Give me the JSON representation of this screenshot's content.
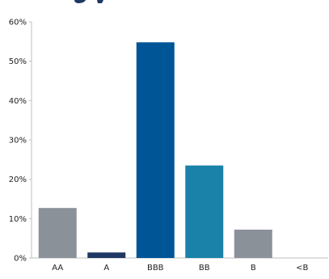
{
  "chart_data": {
    "type": "bar",
    "categories": [
      "AA",
      "A",
      "BBB",
      "BB",
      "B",
      "<B"
    ],
    "values": [
      12.7,
      1.4,
      54.8,
      23.5,
      7.2,
      0
    ],
    "colors": [
      "#8a9199",
      "#1f3864",
      "#005597",
      "#1a82a8",
      "#8a9199",
      "#8a9199"
    ],
    "ylim": [
      0,
      60
    ],
    "yticks": [
      0,
      10,
      20,
      30,
      40,
      50,
      60
    ],
    "ytick_labels": [
      "0%",
      "10%",
      "20%",
      "30%",
      "40%",
      "50%",
      "60%"
    ],
    "title": "",
    "xlabel": "",
    "ylabel": "",
    "grid": false,
    "legend": "none"
  }
}
